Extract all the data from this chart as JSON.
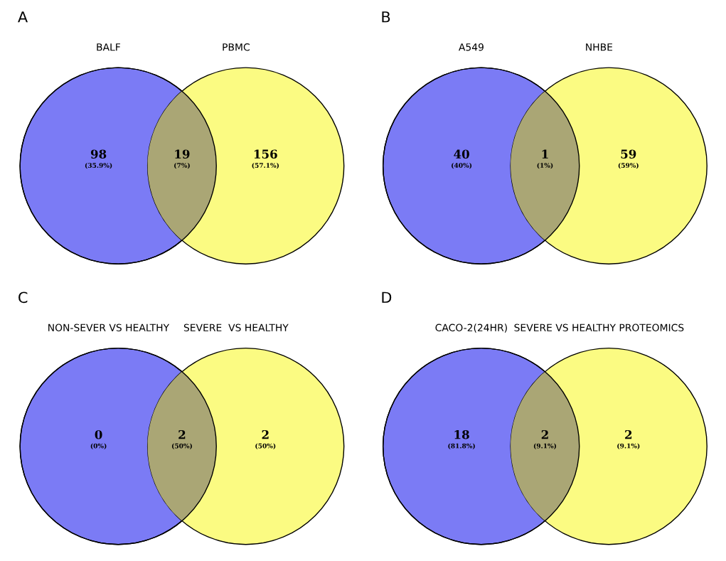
{
  "chart_data": [
    {
      "type": "other",
      "title": "A",
      "annotations": [
        "BALF",
        "PBMC",
        "(35.9%)",
        "(7%)",
        "(57.1%)"
      ],
      "categories": [
        null,
        null,
        null
      ],
      "values": [
        98,
        19,
        156
      ],
      "data_labels": true,
      "colors": [
        "#7b7bf5",
        "#aaa675",
        "#fbfb82"
      ]
    },
    {
      "type": "other",
      "title": "B",
      "annotations": [
        "A549",
        "NHBE",
        "(40%)",
        "(1%)",
        "(59%)"
      ],
      "categories": [
        null,
        null,
        null
      ],
      "values": [
        40,
        1,
        59
      ],
      "data_labels": true,
      "colors": [
        "#7b7bf5",
        "#aaa675",
        "#fbfb82"
      ]
    },
    {
      "type": "other",
      "title": "C",
      "annotations": [
        "NON-SEVER VS HEALTHY",
        "SEVERE  VS HEALTHY",
        "(0%)",
        "(50%)",
        "(50%)"
      ],
      "categories": [
        null,
        null,
        null
      ],
      "values": [
        0,
        2,
        2
      ],
      "data_labels": true,
      "colors": [
        "#7b7bf5",
        "#aaa675",
        "#fbfb82"
      ]
    },
    {
      "type": "other",
      "title": "D",
      "annotations": [
        "CACO-2(24HR)",
        "SEVERE VS HEALTHY PROTEOMICS",
        "(81.8%)",
        "(9.1%)",
        "(9.1%)"
      ],
      "categories": [
        null,
        null,
        null
      ],
      "values": [
        18,
        2,
        2
      ],
      "data_labels": true,
      "colors": [
        "#7b7bf5",
        "#aaa675",
        "#fbfb82"
      ]
    }
  ]
}
